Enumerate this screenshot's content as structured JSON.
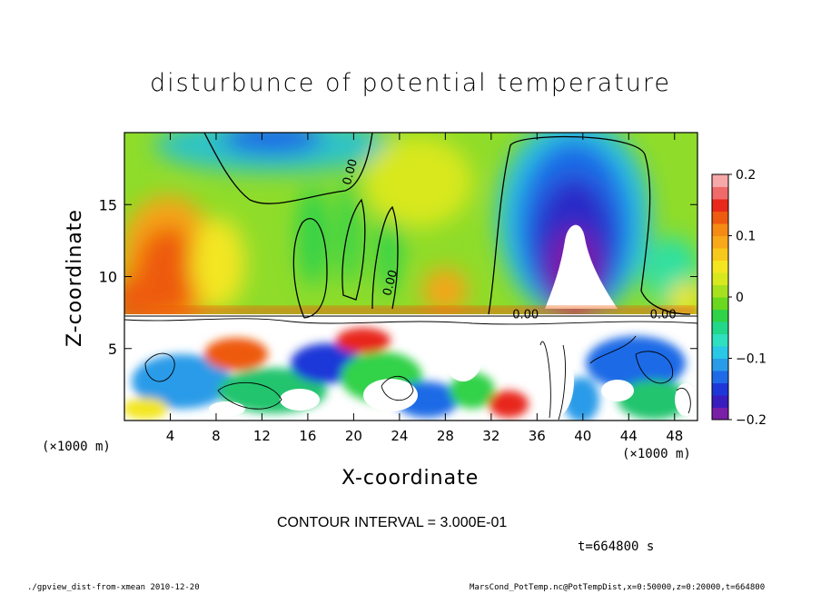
{
  "chart_data": {
    "type": "heatmap",
    "title": "disturbunce of potential temperature",
    "xlabel": "X-coordinate",
    "ylabel": "Z-coordinate",
    "x_unit_label": "(×1000 m)",
    "xlim": [
      0,
      50
    ],
    "ylim": [
      0,
      20
    ],
    "x_ticks": [
      4,
      8,
      12,
      16,
      20,
      24,
      28,
      32,
      36,
      40,
      44,
      48
    ],
    "y_ticks": [
      5,
      10,
      15
    ],
    "colorbar": {
      "range": [
        -0.2,
        0.2
      ],
      "ticks": [
        {
          "value": 0.2,
          "label": "0.2"
        },
        {
          "value": 0.1,
          "label": "0.1"
        },
        {
          "value": 0,
          "label": "0"
        },
        {
          "value": -0.1,
          "label": "−0.1"
        },
        {
          "value": -0.2,
          "label": "−0.2"
        }
      ],
      "colors": [
        "#7a1fa8",
        "#3a1dbf",
        "#1f37d8",
        "#1f6ae6",
        "#2a9be8",
        "#28c8e6",
        "#2ee0c0",
        "#22d68a",
        "#30d248",
        "#6ad81e",
        "#a6e01e",
        "#d8e81e",
        "#f3e621",
        "#f8c81c",
        "#f8a818",
        "#f58a14",
        "#ee5a10",
        "#e8281a",
        "#f06a6a",
        "#f7a8a8"
      ]
    },
    "contour_labels": [
      {
        "x": 20,
        "z": 17.2,
        "label": "0.00"
      },
      {
        "x": 23.5,
        "z": 9.5,
        "label": "0.00"
      },
      {
        "x": 35,
        "z": 7.1,
        "label": "0.00"
      },
      {
        "x": 47,
        "z": 7.1,
        "label": "0.00"
      }
    ]
  },
  "annotations": {
    "contour_interval": "CONTOUR INTERVAL = 3.000E-01",
    "time": "t=664800 s",
    "footer_left": "./gpview_dist-from-xmean  2010-12-20",
    "footer_right": "MarsCond_PotTemp.nc@PotTempDist,x=0:50000,z=0:20000,t=664800"
  }
}
